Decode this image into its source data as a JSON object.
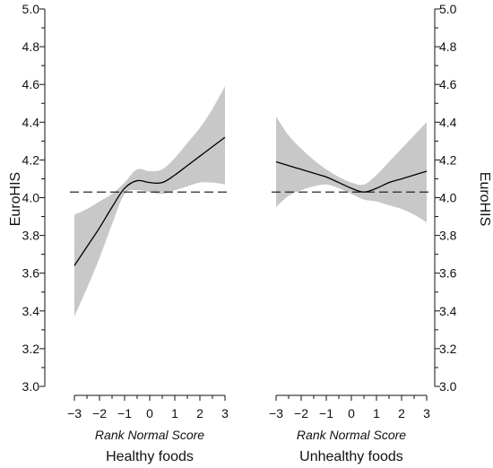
{
  "chart_data": [
    {
      "type": "line",
      "panel": "left",
      "ylabel": "EuroHIS",
      "xlabel": "Rank Normal Score",
      "subtitle": "Healthy foods",
      "xlim": [
        -3,
        3
      ],
      "ylim": [
        3.0,
        5.0
      ],
      "x_ticks": [
        -3,
        -2,
        -1,
        0,
        1,
        2,
        3
      ],
      "x_tick_labels": [
        "−3",
        "−2",
        "−1",
        "0",
        "1",
        "2",
        "3"
      ],
      "y_ticks": [
        3.0,
        3.2,
        3.4,
        3.6,
        3.8,
        4.0,
        4.2,
        4.4,
        4.6,
        4.8,
        5.0
      ],
      "y_tick_labels": [
        "3.0",
        "3.2",
        "3.4",
        "3.6",
        "3.8",
        "4.0",
        "4.2",
        "4.4",
        "4.6",
        "4.8",
        "5.0"
      ],
      "reference_line": 4.03,
      "x": [
        -3.0,
        -2.5,
        -2.0,
        -1.5,
        -1.0,
        -0.5,
        0.0,
        0.5,
        1.0,
        1.5,
        2.0,
        2.5,
        3.0
      ],
      "y": [
        3.64,
        3.74,
        3.84,
        3.95,
        4.05,
        4.09,
        4.08,
        4.08,
        4.12,
        4.17,
        4.22,
        4.27,
        4.32
      ],
      "band_upper": [
        3.91,
        3.94,
        3.98,
        4.02,
        4.08,
        4.15,
        4.14,
        4.15,
        4.21,
        4.29,
        4.37,
        4.47,
        4.59
      ],
      "band_lower": [
        3.37,
        3.52,
        3.68,
        3.86,
        4.02,
        4.04,
        4.03,
        4.02,
        4.04,
        4.06,
        4.08,
        4.08,
        4.07
      ]
    },
    {
      "type": "line",
      "panel": "right",
      "ylabel": "EuroHIS",
      "xlabel": "Rank Normal Score",
      "subtitle": "Unhealthy foods",
      "xlim": [
        -3,
        3
      ],
      "ylim": [
        3.0,
        5.0
      ],
      "x_ticks": [
        -3,
        -2,
        -1,
        0,
        1,
        2,
        3
      ],
      "x_tick_labels": [
        "−3",
        "−2",
        "−1",
        "0",
        "1",
        "2",
        "3"
      ],
      "y_ticks": [
        3.0,
        3.2,
        3.4,
        3.6,
        3.8,
        4.0,
        4.2,
        4.4,
        4.6,
        4.8,
        5.0
      ],
      "y_tick_labels": [
        "3.0",
        "3.2",
        "3.4",
        "3.6",
        "3.8",
        "4.0",
        "4.2",
        "4.4",
        "4.6",
        "4.8",
        "5.0"
      ],
      "reference_line": 4.03,
      "x": [
        -3.0,
        -2.5,
        -2.0,
        -1.5,
        -1.0,
        -0.5,
        0.0,
        0.5,
        1.0,
        1.5,
        2.0,
        2.5,
        3.0
      ],
      "y": [
        4.19,
        4.17,
        4.15,
        4.13,
        4.11,
        4.08,
        4.05,
        4.03,
        4.05,
        4.08,
        4.1,
        4.12,
        4.14
      ],
      "band_upper": [
        4.43,
        4.33,
        4.26,
        4.2,
        4.15,
        4.11,
        4.08,
        4.07,
        4.12,
        4.19,
        4.26,
        4.33,
        4.4
      ],
      "band_lower": [
        3.95,
        4.01,
        4.04,
        4.06,
        4.07,
        4.05,
        4.02,
        3.99,
        3.98,
        3.96,
        3.94,
        3.91,
        3.87
      ]
    }
  ]
}
